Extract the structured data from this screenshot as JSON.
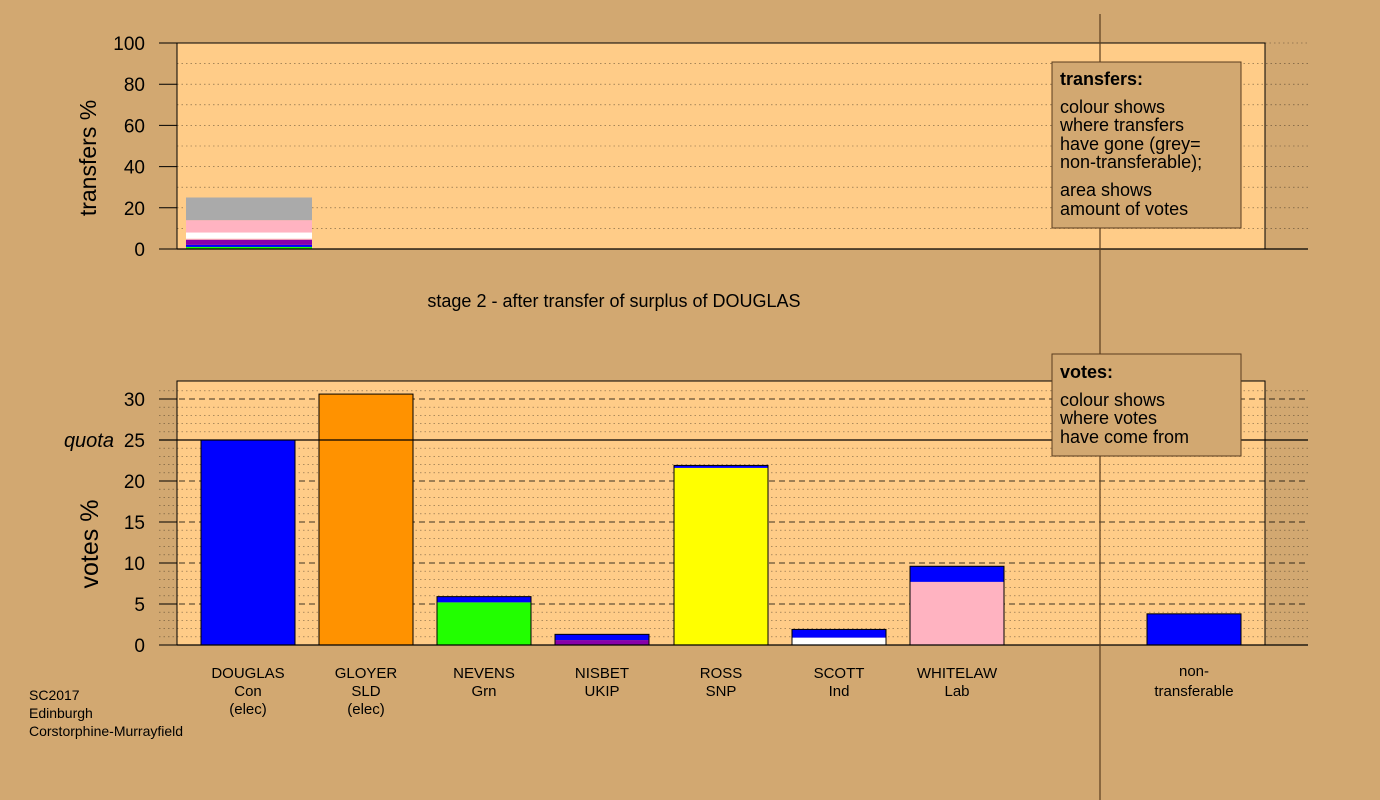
{
  "colors": {
    "background": "#D2A871",
    "panel": "#FFCC88",
    "grid": "#000000",
    "party_colors": {
      "Con": "#0000FF",
      "SLD": "#FF9200",
      "Grn": "#22FF00",
      "UKIP": "#8800AA",
      "SNP": "#FFFF00",
      "Ind": "#FFFFFF",
      "Lab": "#FFB3C1",
      "non-transferable": "#AAAAAA"
    }
  },
  "stage_title": "stage 2 - after transfer of surplus of DOUGLAS",
  "quota_label": "quota",
  "footer": {
    "line1": "SC2017",
    "line2": "Edinburgh",
    "line3": "Corstorphine-Murrayfield"
  },
  "transfers_legend": {
    "heading": "transfers:",
    "lines": [
      "colour shows",
      "where transfers",
      "have gone (grey=",
      "non-transferable);",
      "area shows",
      "amount of votes"
    ]
  },
  "votes_legend": {
    "heading": "votes:",
    "lines": [
      "colour shows",
      "where votes",
      "have come from"
    ]
  },
  "chart_data": [
    {
      "type": "bar",
      "ylabel": "transfers %",
      "ylim": [
        0,
        100
      ],
      "yticks": [
        0,
        20,
        40,
        60,
        80,
        100
      ],
      "grid": true,
      "legend_position": "top-right",
      "bars": [
        {
          "label": "DOUGLAS",
          "stack": [
            {
              "party": "Grn",
              "value": 1.0
            },
            {
              "party": "Con",
              "value": 1.0
            },
            {
              "party": "UKIP",
              "value": 2.5
            },
            {
              "party": "Lab",
              "value": 0.5
            },
            {
              "party": "Ind",
              "value": 3.0
            },
            {
              "party": "Lab",
              "value": 6.0
            },
            {
              "party": "non-transferable",
              "value": 11.0
            }
          ]
        }
      ]
    },
    {
      "type": "bar",
      "ylabel": "votes %",
      "ylim": [
        0,
        32
      ],
      "yticks": [
        0,
        5,
        10,
        15,
        20,
        25,
        30
      ],
      "quota": 25,
      "grid": true,
      "legend_position": "top-right",
      "categories": [
        {
          "name": "DOUGLAS",
          "party": "Con",
          "note": "(elec)"
        },
        {
          "name": "GLOYER",
          "party": "SLD",
          "note": "(elec)"
        },
        {
          "name": "NEVENS",
          "party": "Grn",
          "note": ""
        },
        {
          "name": "NISBET",
          "party": "UKIP",
          "note": ""
        },
        {
          "name": "ROSS",
          "party": "SNP",
          "note": ""
        },
        {
          "name": "SCOTT",
          "party": "Ind",
          "note": ""
        },
        {
          "name": "WHITELAW",
          "party": "Lab",
          "note": ""
        }
      ],
      "non_transferable_label": [
        "non-",
        "transferable"
      ],
      "bars": [
        {
          "label": "DOUGLAS",
          "stack": [
            {
              "party": "Con",
              "value": 25.0
            }
          ]
        },
        {
          "label": "GLOYER",
          "stack": [
            {
              "party": "SLD",
              "value": 30.6
            }
          ]
        },
        {
          "label": "NEVENS",
          "stack": [
            {
              "party": "Grn",
              "value": 5.2
            },
            {
              "party": "Con",
              "value": 0.7
            }
          ]
        },
        {
          "label": "NISBET",
          "stack": [
            {
              "party": "UKIP",
              "value": 0.6
            },
            {
              "party": "Con",
              "value": 0.7
            }
          ]
        },
        {
          "label": "ROSS",
          "stack": [
            {
              "party": "SNP",
              "value": 21.6
            },
            {
              "party": "Con",
              "value": 0.3
            }
          ]
        },
        {
          "label": "SCOTT",
          "stack": [
            {
              "party": "Ind",
              "value": 0.9
            },
            {
              "party": "Con",
              "value": 1.0
            }
          ]
        },
        {
          "label": "WHITELAW",
          "stack": [
            {
              "party": "Lab",
              "value": 7.7
            },
            {
              "party": "Con",
              "value": 1.9
            }
          ]
        },
        {
          "label": "non-transferable",
          "stack": [
            {
              "party": "Con",
              "value": 3.8
            }
          ]
        }
      ]
    }
  ]
}
